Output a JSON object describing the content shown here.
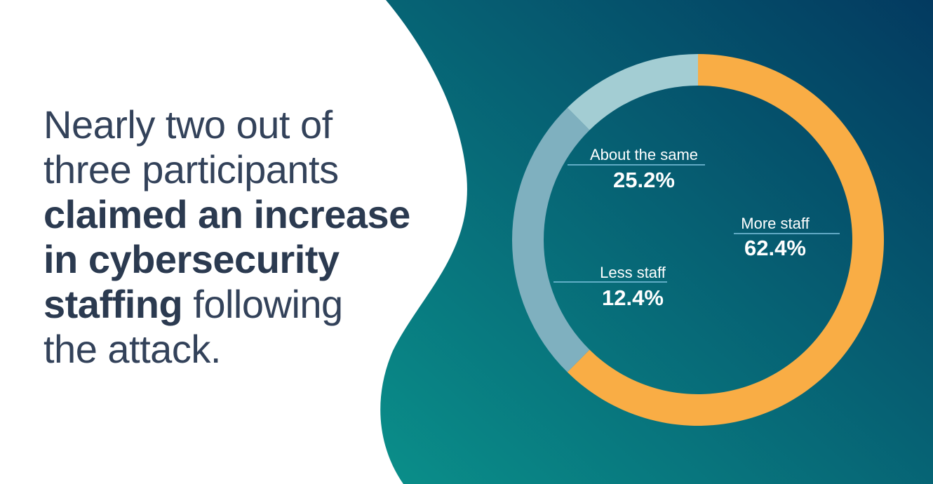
{
  "headline": {
    "line1": "Nearly two out of",
    "line2": "three participants",
    "line3": "claimed an increase",
    "line4": "in cybersecurity",
    "line5_bold": "staffing",
    "line5_rest": " following",
    "line6": "the attack."
  },
  "colors": {
    "background_gradient_start": "#0a8f8a",
    "background_gradient_end": "#033a60",
    "more_staff": "#f9ad45",
    "about_same": "#7fb0bf",
    "less_staff": "#a3cdd3",
    "headline_text": "#2b3a50",
    "leader_line": "#7fc3e0"
  },
  "chart_data": {
    "type": "pie",
    "title": "",
    "labels": [
      "More staff",
      "About the same",
      "Less staff"
    ],
    "values": [
      62.4,
      25.2,
      12.4
    ],
    "value_labels": [
      "62.4%",
      "25.2%",
      "12.4%"
    ],
    "colors": [
      "#f9ad45",
      "#7fb0bf",
      "#a3cdd3"
    ],
    "donut": true,
    "start_angle": "12 o'clock",
    "direction": "clockwise"
  }
}
